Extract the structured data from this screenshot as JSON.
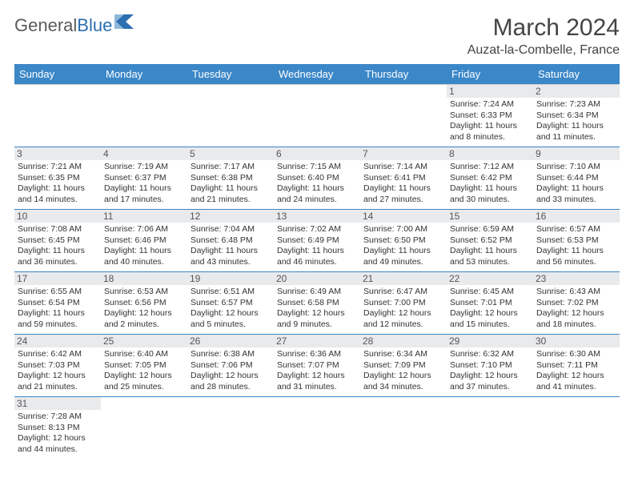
{
  "brand": {
    "part1": "General",
    "part2": "Blue"
  },
  "title": "March 2024",
  "location": "Auzat-la-Combelle, France",
  "colors": {
    "header_bg": "#3b87c8",
    "header_text": "#ffffff",
    "daynum_bg": "#e9eaec",
    "row_divider": "#3b87c8",
    "brand_gray": "#5a5a5a",
    "brand_blue": "#2b6fb0"
  },
  "dayHeaders": [
    "Sunday",
    "Monday",
    "Tuesday",
    "Wednesday",
    "Thursday",
    "Friday",
    "Saturday"
  ],
  "weeks": [
    [
      null,
      null,
      null,
      null,
      null,
      {
        "n": "1",
        "sunrise": "7:24 AM",
        "sunset": "6:33 PM",
        "daylight": "11 hours and 8 minutes."
      },
      {
        "n": "2",
        "sunrise": "7:23 AM",
        "sunset": "6:34 PM",
        "daylight": "11 hours and 11 minutes."
      }
    ],
    [
      {
        "n": "3",
        "sunrise": "7:21 AM",
        "sunset": "6:35 PM",
        "daylight": "11 hours and 14 minutes."
      },
      {
        "n": "4",
        "sunrise": "7:19 AM",
        "sunset": "6:37 PM",
        "daylight": "11 hours and 17 minutes."
      },
      {
        "n": "5",
        "sunrise": "7:17 AM",
        "sunset": "6:38 PM",
        "daylight": "11 hours and 21 minutes."
      },
      {
        "n": "6",
        "sunrise": "7:15 AM",
        "sunset": "6:40 PM",
        "daylight": "11 hours and 24 minutes."
      },
      {
        "n": "7",
        "sunrise": "7:14 AM",
        "sunset": "6:41 PM",
        "daylight": "11 hours and 27 minutes."
      },
      {
        "n": "8",
        "sunrise": "7:12 AM",
        "sunset": "6:42 PM",
        "daylight": "11 hours and 30 minutes."
      },
      {
        "n": "9",
        "sunrise": "7:10 AM",
        "sunset": "6:44 PM",
        "daylight": "11 hours and 33 minutes."
      }
    ],
    [
      {
        "n": "10",
        "sunrise": "7:08 AM",
        "sunset": "6:45 PM",
        "daylight": "11 hours and 36 minutes."
      },
      {
        "n": "11",
        "sunrise": "7:06 AM",
        "sunset": "6:46 PM",
        "daylight": "11 hours and 40 minutes."
      },
      {
        "n": "12",
        "sunrise": "7:04 AM",
        "sunset": "6:48 PM",
        "daylight": "11 hours and 43 minutes."
      },
      {
        "n": "13",
        "sunrise": "7:02 AM",
        "sunset": "6:49 PM",
        "daylight": "11 hours and 46 minutes."
      },
      {
        "n": "14",
        "sunrise": "7:00 AM",
        "sunset": "6:50 PM",
        "daylight": "11 hours and 49 minutes."
      },
      {
        "n": "15",
        "sunrise": "6:59 AM",
        "sunset": "6:52 PM",
        "daylight": "11 hours and 53 minutes."
      },
      {
        "n": "16",
        "sunrise": "6:57 AM",
        "sunset": "6:53 PM",
        "daylight": "11 hours and 56 minutes."
      }
    ],
    [
      {
        "n": "17",
        "sunrise": "6:55 AM",
        "sunset": "6:54 PM",
        "daylight": "11 hours and 59 minutes."
      },
      {
        "n": "18",
        "sunrise": "6:53 AM",
        "sunset": "6:56 PM",
        "daylight": "12 hours and 2 minutes."
      },
      {
        "n": "19",
        "sunrise": "6:51 AM",
        "sunset": "6:57 PM",
        "daylight": "12 hours and 5 minutes."
      },
      {
        "n": "20",
        "sunrise": "6:49 AM",
        "sunset": "6:58 PM",
        "daylight": "12 hours and 9 minutes."
      },
      {
        "n": "21",
        "sunrise": "6:47 AM",
        "sunset": "7:00 PM",
        "daylight": "12 hours and 12 minutes."
      },
      {
        "n": "22",
        "sunrise": "6:45 AM",
        "sunset": "7:01 PM",
        "daylight": "12 hours and 15 minutes."
      },
      {
        "n": "23",
        "sunrise": "6:43 AM",
        "sunset": "7:02 PM",
        "daylight": "12 hours and 18 minutes."
      }
    ],
    [
      {
        "n": "24",
        "sunrise": "6:42 AM",
        "sunset": "7:03 PM",
        "daylight": "12 hours and 21 minutes."
      },
      {
        "n": "25",
        "sunrise": "6:40 AM",
        "sunset": "7:05 PM",
        "daylight": "12 hours and 25 minutes."
      },
      {
        "n": "26",
        "sunrise": "6:38 AM",
        "sunset": "7:06 PM",
        "daylight": "12 hours and 28 minutes."
      },
      {
        "n": "27",
        "sunrise": "6:36 AM",
        "sunset": "7:07 PM",
        "daylight": "12 hours and 31 minutes."
      },
      {
        "n": "28",
        "sunrise": "6:34 AM",
        "sunset": "7:09 PM",
        "daylight": "12 hours and 34 minutes."
      },
      {
        "n": "29",
        "sunrise": "6:32 AM",
        "sunset": "7:10 PM",
        "daylight": "12 hours and 37 minutes."
      },
      {
        "n": "30",
        "sunrise": "6:30 AM",
        "sunset": "7:11 PM",
        "daylight": "12 hours and 41 minutes."
      }
    ],
    [
      {
        "n": "31",
        "sunrise": "7:28 AM",
        "sunset": "8:13 PM",
        "daylight": "12 hours and 44 minutes."
      },
      null,
      null,
      null,
      null,
      null,
      null
    ]
  ],
  "labels": {
    "sunrise": "Sunrise:",
    "sunset": "Sunset:",
    "daylight": "Daylight:"
  }
}
